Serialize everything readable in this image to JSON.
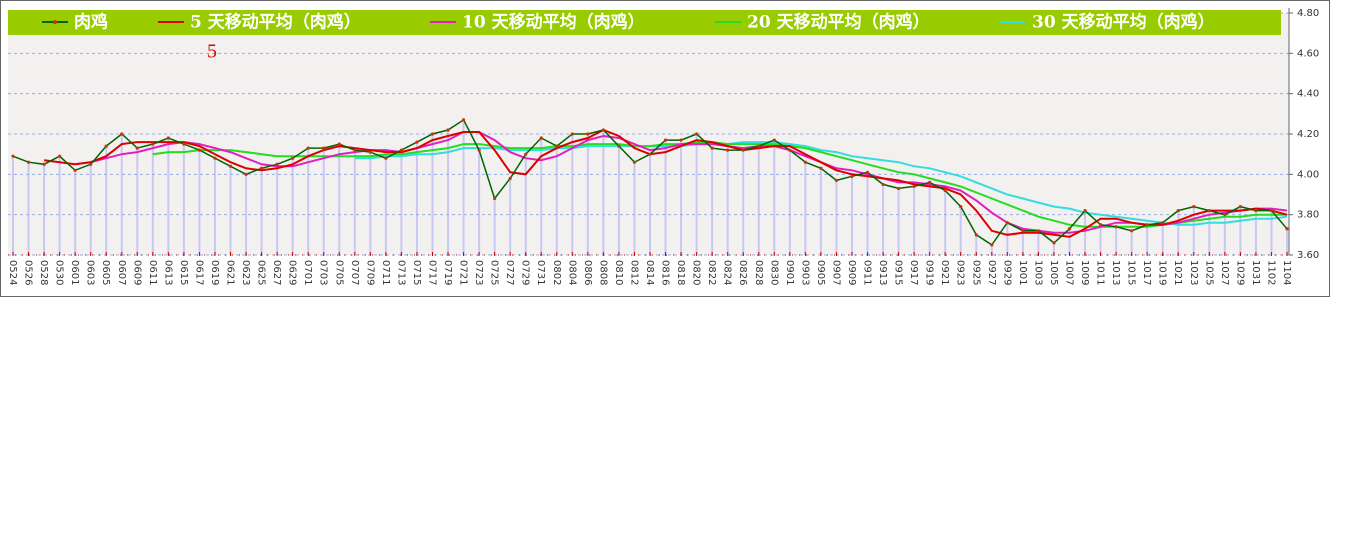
{
  "chart_data": {
    "type": "line",
    "annotation": "5",
    "categories": [
      "0524",
      "0526",
      "0528",
      "0530",
      "0601",
      "0603",
      "0605",
      "0607",
      "0609",
      "0611",
      "0613",
      "0615",
      "0617",
      "0619",
      "0621",
      "0623",
      "0625",
      "0627",
      "0629",
      "0701",
      "0703",
      "0705",
      "0707",
      "0709",
      "0711",
      "0713",
      "0715",
      "0717",
      "0719",
      "0721",
      "0723",
      "0725",
      "0727",
      "0729",
      "0731",
      "0802",
      "0804",
      "0806",
      "0808",
      "0810",
      "0812",
      "0814",
      "0816",
      "0818",
      "0820",
      "0822",
      "0824",
      "0826",
      "0828",
      "0830",
      "0901",
      "0903",
      "0905",
      "0907",
      "0909",
      "0911",
      "0913",
      "0915",
      "0917",
      "0919",
      "0921",
      "0923",
      "0925",
      "0927",
      "0929",
      "1001",
      "1003",
      "1005",
      "1007",
      "1009",
      "1011",
      "1013",
      "1015",
      "1017",
      "1019",
      "1021",
      "1023",
      "1025",
      "1027",
      "1029",
      "1031",
      "1102",
      "1104"
    ],
    "series": [
      {
        "name": "肉鸡",
        "color": "#006600",
        "marker_color": "#cc3300",
        "values": [
          4.09,
          4.06,
          4.05,
          4.09,
          4.02,
          4.05,
          4.14,
          4.2,
          4.13,
          4.15,
          4.18,
          4.15,
          4.12,
          4.08,
          4.04,
          4.0,
          4.03,
          4.05,
          4.08,
          4.13,
          4.13,
          4.15,
          4.12,
          4.11,
          4.08,
          4.12,
          4.16,
          4.2,
          4.22,
          4.27,
          4.12,
          3.88,
          3.98,
          4.1,
          4.18,
          4.14,
          4.2,
          4.2,
          4.22,
          4.14,
          4.06,
          4.1,
          4.17,
          4.17,
          4.2,
          4.13,
          4.12,
          4.12,
          4.14,
          4.17,
          4.12,
          4.06,
          4.03,
          3.97,
          3.99,
          4.01,
          3.95,
          3.93,
          3.94,
          3.96,
          3.92,
          3.84,
          3.7,
          3.65,
          3.76,
          3.72,
          3.72,
          3.66,
          3.73,
          3.82,
          3.75,
          3.74,
          3.72,
          3.75,
          3.76,
          3.82,
          3.84,
          3.82,
          3.8,
          3.84,
          3.82,
          3.82,
          3.73
        ]
      },
      {
        "name": "5 天移动平均（肉鸡）",
        "color": "#dd0000",
        "values": [
          null,
          null,
          4.07,
          4.06,
          4.05,
          4.06,
          4.09,
          4.15,
          4.16,
          4.16,
          4.16,
          4.16,
          4.14,
          4.1,
          4.06,
          4.03,
          4.02,
          4.03,
          4.05,
          4.09,
          4.12,
          4.14,
          4.13,
          4.12,
          4.11,
          4.11,
          4.13,
          4.17,
          4.19,
          4.21,
          4.21,
          4.12,
          4.01,
          4.0,
          4.09,
          4.13,
          4.16,
          4.18,
          4.22,
          4.19,
          4.13,
          4.1,
          4.11,
          4.14,
          4.17,
          4.16,
          4.14,
          4.12,
          4.13,
          4.14,
          4.14,
          4.1,
          4.06,
          4.02,
          4.0,
          3.99,
          3.98,
          3.97,
          3.95,
          3.94,
          3.93,
          3.9,
          3.82,
          3.72,
          3.7,
          3.71,
          3.71,
          3.7,
          3.69,
          3.73,
          3.78,
          3.78,
          3.76,
          3.75,
          3.75,
          3.77,
          3.8,
          3.82,
          3.82,
          3.82,
          3.83,
          3.82,
          3.8
        ]
      },
      {
        "name": "10 天移动平均（肉鸡）",
        "color": "#e020c0",
        "values": [
          null,
          null,
          null,
          null,
          4.05,
          4.06,
          4.08,
          4.1,
          4.11,
          4.13,
          4.15,
          4.16,
          4.15,
          4.13,
          4.11,
          4.08,
          4.05,
          4.04,
          4.04,
          4.06,
          4.08,
          4.1,
          4.11,
          4.12,
          4.12,
          4.11,
          4.13,
          4.15,
          4.17,
          4.21,
          4.21,
          4.17,
          4.11,
          4.08,
          4.07,
          4.09,
          4.13,
          4.17,
          4.19,
          4.18,
          4.15,
          4.12,
          4.13,
          4.15,
          4.15,
          4.15,
          4.14,
          4.13,
          4.14,
          4.14,
          4.12,
          4.09,
          4.06,
          4.03,
          4.02,
          4.0,
          3.98,
          3.96,
          3.96,
          3.95,
          3.94,
          3.92,
          3.87,
          3.81,
          3.76,
          3.73,
          3.72,
          3.71,
          3.71,
          3.72,
          3.74,
          3.76,
          3.76,
          3.75,
          3.75,
          3.76,
          3.78,
          3.8,
          3.81,
          3.82,
          3.83,
          3.83,
          3.82
        ]
      },
      {
        "name": "20 天移动平均（肉鸡）",
        "color": "#22dd22",
        "values": [
          null,
          null,
          null,
          null,
          null,
          null,
          null,
          null,
          null,
          4.1,
          4.11,
          4.11,
          4.12,
          4.12,
          4.12,
          4.11,
          4.1,
          4.09,
          4.09,
          4.09,
          4.09,
          4.09,
          4.09,
          4.09,
          4.1,
          4.1,
          4.11,
          4.12,
          4.13,
          4.15,
          4.15,
          4.14,
          4.13,
          4.13,
          4.13,
          4.14,
          4.14,
          4.15,
          4.15,
          4.15,
          4.14,
          4.14,
          4.15,
          4.15,
          4.16,
          4.16,
          4.15,
          4.15,
          4.15,
          4.15,
          4.14,
          4.13,
          4.11,
          4.09,
          4.07,
          4.05,
          4.03,
          4.01,
          4.0,
          3.98,
          3.96,
          3.94,
          3.91,
          3.88,
          3.85,
          3.82,
          3.79,
          3.77,
          3.75,
          3.74,
          3.74,
          3.74,
          3.74,
          3.74,
          3.75,
          3.76,
          3.77,
          3.78,
          3.79,
          3.79,
          3.8,
          3.8,
          3.8
        ]
      },
      {
        "name": "30 天移动平均（肉鸡）",
        "color": "#33dddd",
        "values": [
          null,
          null,
          null,
          null,
          null,
          null,
          null,
          null,
          null,
          null,
          null,
          null,
          null,
          null,
          null,
          null,
          null,
          null,
          null,
          null,
          null,
          null,
          4.08,
          4.08,
          4.09,
          4.09,
          4.1,
          4.1,
          4.11,
          4.13,
          4.13,
          4.13,
          4.12,
          4.12,
          4.12,
          4.13,
          4.13,
          4.14,
          4.14,
          4.14,
          4.14,
          4.14,
          4.14,
          4.14,
          4.15,
          4.15,
          4.15,
          4.16,
          4.16,
          4.16,
          4.15,
          4.14,
          4.12,
          4.11,
          4.09,
          4.08,
          4.07,
          4.06,
          4.04,
          4.03,
          4.01,
          3.99,
          3.96,
          3.93,
          3.9,
          3.88,
          3.86,
          3.84,
          3.83,
          3.81,
          3.8,
          3.79,
          3.78,
          3.77,
          3.76,
          3.75,
          3.75,
          3.76,
          3.76,
          3.77,
          3.78,
          3.78,
          3.79
        ]
      }
    ],
    "ylim": [
      3.6,
      4.8
    ],
    "yticks": [
      {
        "value": 3.6,
        "label": "3.60"
      },
      {
        "value": 3.8,
        "label": "3.80"
      },
      {
        "value": 4.0,
        "label": "4.00"
      },
      {
        "value": 4.2,
        "label": "4.20"
      },
      {
        "value": 4.4,
        "label": "4.40"
      },
      {
        "value": 4.6,
        "label": "4.60"
      },
      {
        "value": 4.8,
        "label": "4.80"
      }
    ],
    "grid": true,
    "bar_color": "#c8c8f4",
    "legend_color": "#99cc00"
  }
}
